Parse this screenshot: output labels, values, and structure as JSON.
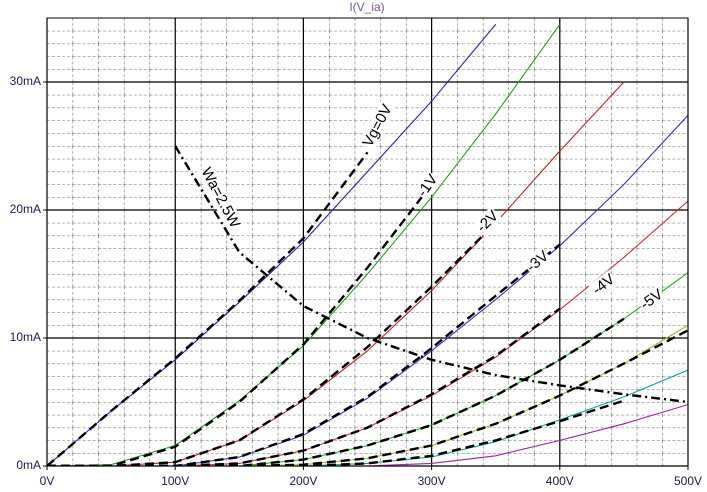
{
  "chart_data": {
    "type": "line",
    "title": "I(V_ia)",
    "x": [
      0,
      50,
      100,
      150,
      200,
      250,
      300,
      350,
      400,
      450,
      500
    ],
    "xlim": [
      0,
      500
    ],
    "ylim": [
      0,
      35
    ],
    "xticks": [
      {
        "value": 0,
        "label": "0V"
      },
      {
        "value": 100,
        "label": "100V"
      },
      {
        "value": 200,
        "label": "200V"
      },
      {
        "value": 300,
        "label": "300V"
      },
      {
        "value": 400,
        "label": "400V"
      },
      {
        "value": 500,
        "label": "500V"
      }
    ],
    "yticks": [
      {
        "value": 0,
        "label": "0mA"
      },
      {
        "value": 10,
        "label": "10mA"
      },
      {
        "value": 20,
        "label": "20mA"
      },
      {
        "value": 30,
        "label": "30mA"
      }
    ],
    "grid": true,
    "series": [
      {
        "color": "#2020c0",
        "style": "solid",
        "values": [
          0,
          4.3,
          8.3,
          12.8,
          17.5,
          23,
          28.5,
          34.5,
          null,
          null,
          null
        ]
      },
      {
        "color": "#20a020",
        "style": "solid",
        "values": [
          0,
          0.1,
          1.6,
          5.1,
          9.4,
          15,
          21,
          27.5,
          34.5,
          null,
          null
        ]
      },
      {
        "color": "#c02020",
        "style": "solid",
        "values": [
          0,
          0,
          0.3,
          2,
          5.1,
          9,
          13.7,
          19,
          24.6,
          30,
          null
        ]
      },
      {
        "color": "#3030d0",
        "style": "solid",
        "values": [
          0,
          0,
          0,
          0.7,
          2.4,
          5.3,
          9,
          13,
          17.2,
          22,
          27.4
        ]
      },
      {
        "color": "#d03030",
        "style": "solid",
        "values": [
          0,
          0,
          0,
          0.2,
          1.2,
          3,
          5.5,
          8.5,
          12.2,
          16.3,
          20.7
        ]
      },
      {
        "color": "#20b020",
        "style": "solid",
        "values": [
          0,
          0,
          0,
          0,
          0.5,
          1.6,
          3.2,
          5.5,
          8.3,
          11.5,
          15.1
        ]
      },
      {
        "color": "#b0b020",
        "style": "solid",
        "values": [
          0,
          0,
          0,
          0,
          0.1,
          0.6,
          1.6,
          3.3,
          5.5,
          8,
          11
        ]
      },
      {
        "color": "#10a0a0",
        "style": "solid",
        "values": [
          0,
          0,
          0,
          0,
          0,
          0.2,
          0.7,
          1.9,
          3.6,
          5.4,
          7.5
        ]
      },
      {
        "color": "#a020a0",
        "style": "solid",
        "values": [
          0,
          0,
          0,
          0,
          0,
          0,
          0.2,
          0.8,
          2,
          3.3,
          4.8
        ]
      },
      {
        "color": "#000000",
        "style": "dashed",
        "values": [
          0,
          4.3,
          8.4,
          12.9,
          17.8,
          24.5,
          null,
          null,
          null,
          null,
          null
        ]
      },
      {
        "color": "#000000",
        "style": "dashed",
        "values": [
          0,
          0,
          1.5,
          5,
          9.5,
          15.5,
          22,
          null,
          null,
          null,
          null
        ]
      },
      {
        "color": "#000000",
        "style": "dashed",
        "values": [
          0,
          0,
          0.3,
          2,
          5.2,
          9.3,
          14,
          19,
          null,
          null,
          null
        ]
      },
      {
        "color": "#000000",
        "style": "dashed",
        "values": [
          0,
          0,
          0,
          0.7,
          2.5,
          5.4,
          9.2,
          13.3,
          17.3,
          null,
          null
        ]
      },
      {
        "color": "#000000",
        "style": "dashed",
        "values": [
          0,
          0,
          0,
          0.2,
          1.2,
          3,
          5.6,
          8.6,
          12.3,
          null,
          null
        ]
      },
      {
        "color": "#000000",
        "style": "dashed",
        "values": [
          0,
          0,
          0,
          0,
          0.5,
          1.6,
          3.2,
          5.5,
          8.3,
          11.5,
          null
        ]
      },
      {
        "color": "#000000",
        "style": "dashed",
        "values": [
          0,
          0,
          0,
          0,
          0.1,
          0.6,
          1.6,
          3.3,
          5.5,
          8,
          10.6
        ]
      },
      {
        "color": "#000000",
        "style": "dashed",
        "values": [
          0,
          0,
          0,
          0,
          0,
          0.2,
          0.8,
          2,
          3.5,
          5.1,
          null
        ]
      },
      {
        "color": "#000000",
        "style": "dashdot",
        "values": [
          null,
          null,
          25,
          16.7,
          12.5,
          10,
          8.3,
          7.1,
          6.3,
          5.6,
          5
        ]
      }
    ],
    "annotations": [
      "Vg=0V",
      "-1V",
      "-2V",
      "-3V",
      "-4V",
      "-5V",
      "Wa=2.5W"
    ]
  }
}
